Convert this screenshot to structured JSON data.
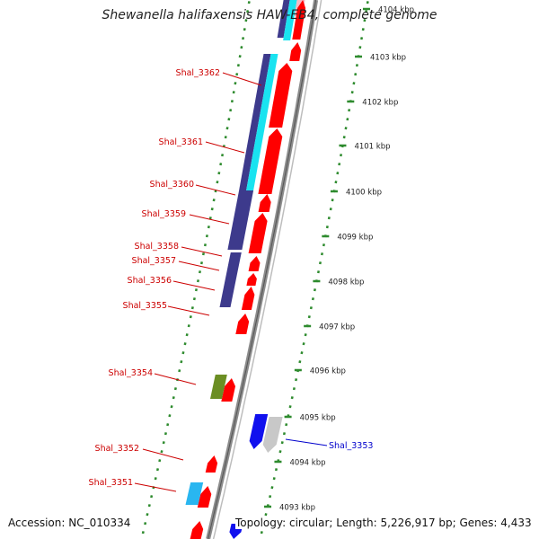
{
  "title": "Shewanella halifaxensis HAW-EB4, complete genome",
  "footer": {
    "accession": "Accession: NC_010334",
    "summary": "Topology: circular; Length: 5,226,917 bp; Genes: 4,433"
  },
  "colors": {
    "background": "#ffffff",
    "axis": "#8c8c8c",
    "tick": "#2e8b2e",
    "cds_red": "#ff0000",
    "cds_blue": "#1010ee",
    "cds_gray": "#c8c8c8",
    "cds_green": "#6b8e23",
    "cds_cyan": "#29b6f0",
    "match_navy": "#3d3a8c",
    "label_red": "#cc0000",
    "label_blue": "#0000cc"
  },
  "position_ticks": [
    "4104 kbp",
    "4103 kbp",
    "4102 kbp",
    "4101 kbp",
    "4100 kbp",
    "4099 kbp",
    "4098 kbp",
    "4097 kbp",
    "4096 kbp",
    "4095 kbp",
    "4094 kbp",
    "4093 kbp"
  ],
  "gene_labels": [
    {
      "label": "Shal_3362",
      "color": "label_red"
    },
    {
      "label": "Shal_3361",
      "color": "label_red"
    },
    {
      "label": "Shal_3360",
      "color": "label_red"
    },
    {
      "label": "Shal_3359",
      "color": "label_red"
    },
    {
      "label": "Shal_3358",
      "color": "label_red"
    },
    {
      "label": "Shal_3357",
      "color": "label_red"
    },
    {
      "label": "Shal_3356",
      "color": "label_red"
    },
    {
      "label": "Shal_3355",
      "color": "label_red"
    },
    {
      "label": "Shal_3354",
      "color": "label_red"
    },
    {
      "label": "Shal_3353",
      "color": "label_blue"
    },
    {
      "label": "Shal_3352",
      "color": "label_red"
    },
    {
      "label": "Shal_3351",
      "color": "label_red"
    }
  ]
}
